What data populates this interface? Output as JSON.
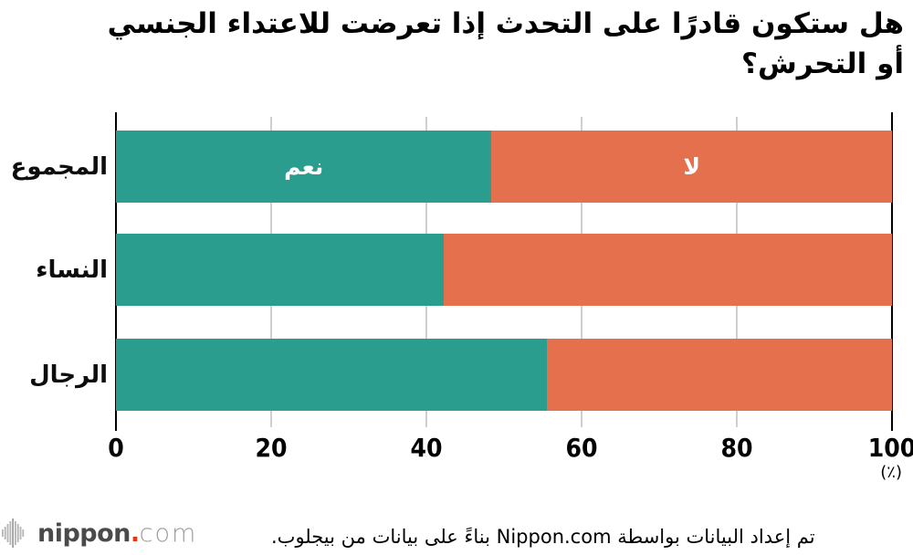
{
  "title": {
    "line1": "هل ستكون قادرًا على التحدث إذا تعرضت للاعتداء الجنسي",
    "line2": "أو التحرش؟"
  },
  "chart_data": {
    "type": "bar",
    "orientation": "horizontal",
    "stacked": true,
    "title": "هل ستكون قادرًا على التحدث إذا تعرضت للاعتداء الجنسي أو التحرش؟",
    "categories": [
      "المجموع",
      "النساء",
      "الرجال"
    ],
    "series": [
      {
        "name": "نعم",
        "color": "#2a9d8e",
        "values": [
          48.4,
          42.2,
          55.5
        ]
      },
      {
        "name": "لا",
        "color": "#e5704e",
        "values": [
          51.6,
          57.8,
          44.5
        ]
      }
    ],
    "xlim": [
      0,
      100
    ],
    "xticks": [
      0,
      20,
      40,
      60,
      80,
      100
    ],
    "unit_label": "(٪)",
    "legend_position": "inside-first-bar",
    "grid": true
  },
  "footer": {
    "attribution": "تم إعداد البيانات بواسطة Nippon.com بناءً على بيانات من بيجلوب.",
    "logo": {
      "name": "nippon",
      "dot": ".",
      "com": "com"
    }
  },
  "colors": {
    "yes": "#2a9d8e",
    "no": "#e5704e",
    "grid": "#cfcfcf",
    "axis": "#000000",
    "bar_label": "#ffffff",
    "logo_dark": "#4a4a4a",
    "logo_light": "#9b9b9b",
    "logo_red": "#e8380d"
  }
}
